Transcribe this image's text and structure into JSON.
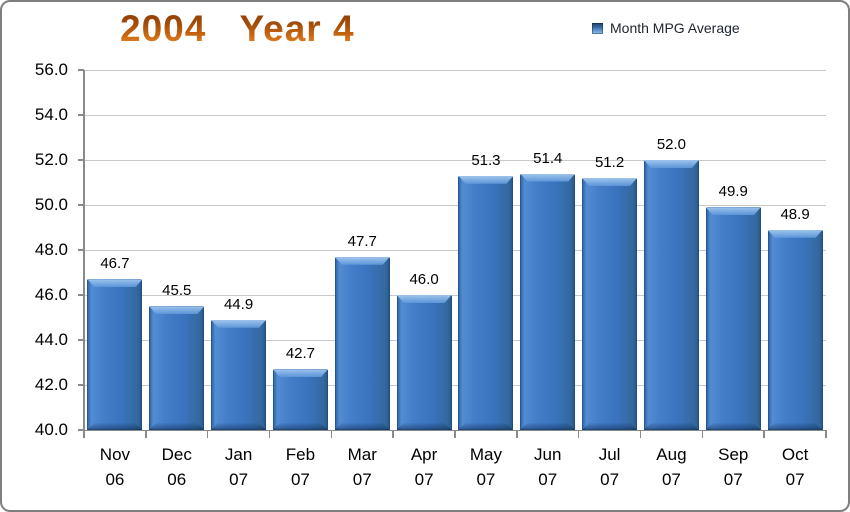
{
  "window": {
    "background": "#ffffff",
    "border_color": "#7f7f7f"
  },
  "title": {
    "text": "2004   Year 4",
    "color_top": "#8a3c05",
    "color_bottom": "#f09138"
  },
  "legend": {
    "label": "Month MPG Average",
    "marker_color": "#4a7fc1"
  },
  "chart_data": {
    "type": "bar",
    "title": "2004 Year 4",
    "categories": [
      "Nov 06",
      "Dec 06",
      "Jan 07",
      "Feb 07",
      "Mar 07",
      "Apr 07",
      "May 07",
      "Jun 07",
      "Jul 07",
      "Aug 07",
      "Sep 07",
      "Oct 07"
    ],
    "category_lines": [
      [
        "Nov",
        "06"
      ],
      [
        "Dec",
        "06"
      ],
      [
        "Jan",
        "07"
      ],
      [
        "Feb",
        "07"
      ],
      [
        "Mar",
        "07"
      ],
      [
        "Apr",
        "07"
      ],
      [
        "May",
        "07"
      ],
      [
        "Jun",
        "07"
      ],
      [
        "Jul",
        "07"
      ],
      [
        "Aug",
        "07"
      ],
      [
        "Sep",
        "07"
      ],
      [
        "Oct",
        "07"
      ]
    ],
    "series": [
      {
        "name": "Month MPG Average",
        "values": [
          46.7,
          45.5,
          44.9,
          42.7,
          47.7,
          46.0,
          51.3,
          51.4,
          51.2,
          52.0,
          49.9,
          48.9
        ]
      }
    ],
    "data_labels": [
      "46.7",
      "45.5",
      "44.9",
      "42.7",
      "47.7",
      "46.0",
      "51.3",
      "51.4",
      "51.2",
      "52.0",
      "49.9",
      "48.9"
    ],
    "xlabel": "",
    "ylabel": "",
    "ylim": [
      40.0,
      56.0
    ],
    "ytick_step": 2.0,
    "ytick_labels": [
      "40.0",
      "42.0",
      "44.0",
      "46.0",
      "48.0",
      "50.0",
      "52.0",
      "54.0",
      "56.0"
    ],
    "grid": true,
    "legend_position": "top-right",
    "bar_color": "#3b75c1"
  }
}
